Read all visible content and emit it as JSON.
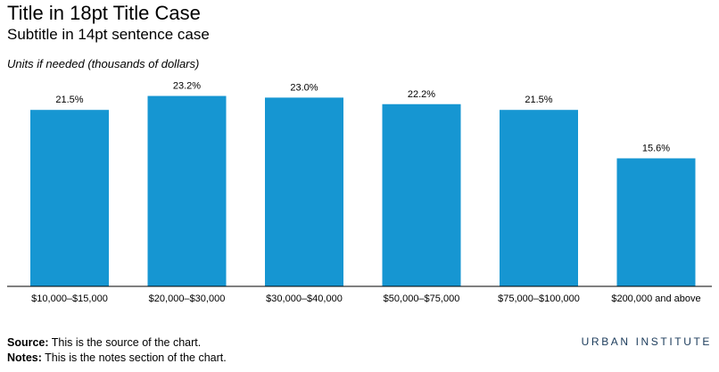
{
  "chart_data": {
    "type": "bar",
    "title": "Title in 18pt Title Case",
    "subtitle": "Subtitle in 14pt sentence case",
    "ylabel": "Units if needed (thousands of dollars)",
    "categories": [
      "$10,000–$15,000",
      "$20,000–$30,000",
      "$30,000–$40,000",
      "$50,000–$75,000",
      "$75,000–$100,000",
      "$200,000 and above"
    ],
    "values": [
      21.5,
      23.2,
      23.0,
      22.2,
      21.5,
      15.6
    ],
    "value_labels": [
      "21.5%",
      "23.2%",
      "23.0%",
      "22.2%",
      "21.5%",
      "15.6%"
    ],
    "ylim": [
      0,
      25
    ],
    "grid": false,
    "bar_color": "#1696d2"
  },
  "footer": {
    "source_label": "Source:",
    "source_text": "This is the source of the chart.",
    "notes_label": "Notes:",
    "notes_text": "This is the notes section of the chart."
  },
  "brand": "URBAN INSTITUTE"
}
